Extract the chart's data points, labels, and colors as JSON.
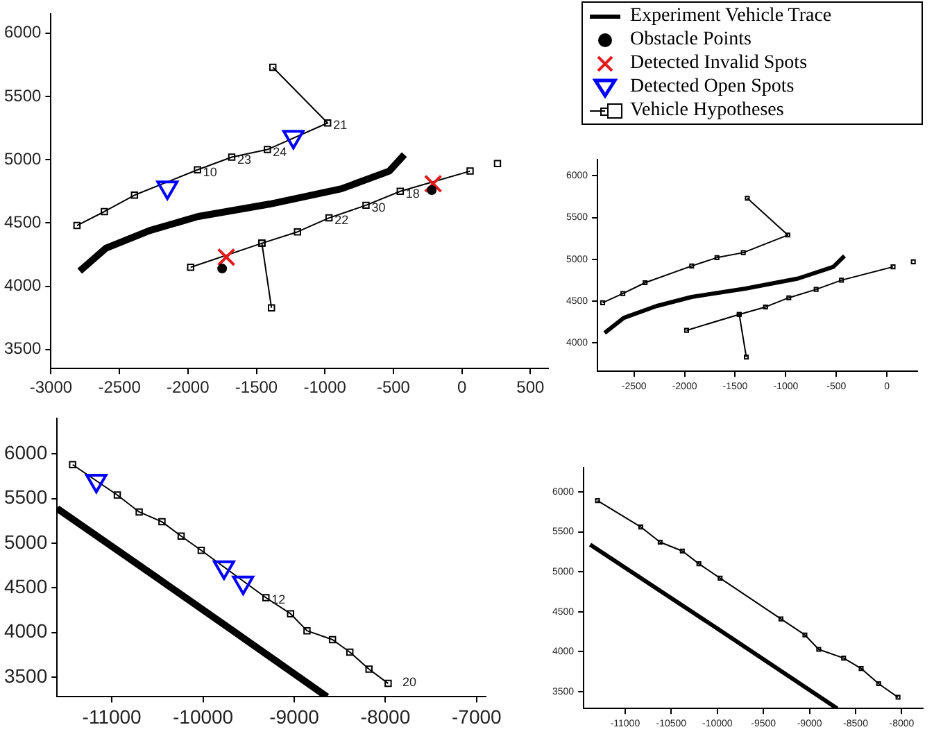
{
  "chart_data": [
    {
      "type": "scatter",
      "legend": "top right",
      "xlim": [
        -3000,
        630
      ],
      "ylim": [
        3350,
        6150
      ],
      "xticks": [
        -3000,
        -2500,
        -2000,
        -1500,
        -1000,
        -500,
        0,
        500
      ],
      "yticks": [
        3500,
        4000,
        4500,
        5000,
        5500,
        6000
      ],
      "grid": false,
      "series": [
        {
          "name": "Experiment Vehicle Trace",
          "type": "line",
          "marker": "none",
          "color": "#000000",
          "x": [
            -2790,
            -2600,
            -2280,
            -1930,
            -1400,
            -880,
            -530,
            -420
          ],
          "values": [
            4120,
            4300,
            4440,
            4550,
            4650,
            4770,
            4910,
            5040
          ]
        },
        {
          "name": "Obstacle Points",
          "type": "scatter",
          "marker": "circle",
          "color": "#000000",
          "x": [
            -1750,
            -220
          ],
          "values": [
            4140,
            4760
          ]
        },
        {
          "name": "Detected Invalid Spots",
          "type": "scatter",
          "marker": "cross",
          "color": "#e41a1c",
          "x": [
            -1720,
            -210
          ],
          "values": [
            4230,
            4810
          ]
        },
        {
          "name": "Detected Open Spots",
          "type": "scatter",
          "marker": "triangle",
          "color": "#0000ff",
          "x": [
            -2150,
            -1230
          ],
          "values": [
            4780,
            5180
          ]
        },
        {
          "name": "Vehicle Hypotheses",
          "type": "line",
          "marker": "square",
          "color": "#000000",
          "x": [
            -2810,
            -2610,
            -2390,
            -1930,
            -1680,
            -1420,
            -980,
            -1380
          ],
          "values": [
            4480,
            4590,
            4720,
            4920,
            5020,
            5080,
            5290,
            5730
          ]
        },
        {
          "type": "line",
          "marker": "square",
          "color": "#000000",
          "x": [
            -1390,
            -1460,
            -1200,
            -970,
            -700,
            -450,
            60
          ],
          "values": [
            3830,
            4340,
            4430,
            4540,
            4640,
            4750,
            4910
          ]
        },
        {
          "type": "line",
          "marker": "square",
          "color": "#000000",
          "x": [
            -1980,
            -1460
          ],
          "values": [
            4150,
            4340
          ]
        },
        {
          "type": "line",
          "marker": "square",
          "color": "#000000",
          "x": [
            260
          ],
          "values": [
            4970
          ]
        }
      ],
      "annotations": [
        {
          "text": "21",
          "x": -980,
          "y": 5290
        },
        {
          "text": "10",
          "x": -1930,
          "y": 4920
        },
        {
          "text": "23",
          "x": -1680,
          "y": 5020
        },
        {
          "text": "24",
          "x": -1420,
          "y": 5080
        },
        {
          "text": "22",
          "x": -970,
          "y": 4540
        },
        {
          "text": "30",
          "x": -700,
          "y": 4640
        },
        {
          "text": "18",
          "x": -450,
          "y": 4750
        }
      ]
    },
    {
      "type": "scatter",
      "xlim": [
        -2860,
        300
      ],
      "ylim": [
        3660,
        6190
      ],
      "xticks": [
        -2500,
        -2000,
        -1500,
        -1000,
        -500,
        0
      ],
      "yticks": [
        4000,
        4500,
        5000,
        5500,
        6000
      ],
      "grid": false,
      "series": [
        {
          "type": "line",
          "marker": "none",
          "color": "#000000",
          "x": [
            -2790,
            -2600,
            -2280,
            -1930,
            -1400,
            -880,
            -530,
            -420
          ],
          "values": [
            4120,
            4300,
            4440,
            4550,
            4650,
            4770,
            4910,
            5040
          ]
        },
        {
          "type": "line",
          "marker": "square",
          "color": "#000000",
          "x": [
            -2810,
            -2610,
            -2390,
            -1930,
            -1680,
            -1420,
            -980,
            -1380
          ],
          "values": [
            4480,
            4590,
            4720,
            4920,
            5020,
            5080,
            5290,
            5730
          ]
        },
        {
          "type": "line",
          "marker": "square",
          "color": "#000000",
          "x": [
            -1390,
            -1460,
            -1200,
            -970,
            -700,
            -450,
            60
          ],
          "values": [
            3830,
            4340,
            4430,
            4540,
            4640,
            4750,
            4910
          ]
        },
        {
          "type": "line",
          "marker": "square",
          "color": "#000000",
          "x": [
            -1980,
            -1460
          ],
          "values": [
            4150,
            4340
          ]
        },
        {
          "type": "line",
          "marker": "square",
          "color": "#000000",
          "x": [
            260
          ],
          "values": [
            4970
          ]
        }
      ]
    },
    {
      "type": "scatter",
      "xlim": [
        -11600,
        -6900
      ],
      "ylim": [
        3280,
        6400
      ],
      "xticks": [
        -11000,
        -10000,
        -9000,
        -8000,
        -7000
      ],
      "yticks": [
        3500,
        4000,
        4500,
        5000,
        5500,
        6000
      ],
      "grid": false,
      "series": [
        {
          "type": "line",
          "marker": "none",
          "color": "#000000",
          "x": [
            -11600,
            -10500,
            -9700,
            -8640
          ],
          "values": [
            5390,
            4610,
            4040,
            3280
          ]
        },
        {
          "type": "scatter",
          "marker": "triangle",
          "color": "#0000ff",
          "x": [
            -11170,
            -9770,
            -9560
          ],
          "values": [
            5700,
            4730,
            4560
          ]
        },
        {
          "type": "line",
          "marker": "square",
          "color": "#000000",
          "x": [
            -11430,
            -10940,
            -10700,
            -10450,
            -10240,
            -10020,
            -9310,
            -9040,
            -8860,
            -8580,
            -8390,
            -8180,
            -7970
          ],
          "values": [
            5880,
            5540,
            5350,
            5240,
            5080,
            4920,
            4390,
            4210,
            4020,
            3920,
            3780,
            3590,
            3430
          ]
        }
      ],
      "annotations": [
        {
          "text": "12",
          "x": -9310,
          "y": 4390
        },
        "20"
      ]
    },
    {
      "type": "scatter",
      "xlim": [
        -11450,
        -7770
      ],
      "ylim": [
        3290,
        6300
      ],
      "xticks": [
        -11000,
        -10500,
        -10000,
        -9500,
        -9000,
        -8500,
        -8000
      ],
      "yticks": [
        3500,
        4000,
        4500,
        5000,
        5500,
        6000
      ],
      "grid": false,
      "series": [
        {
          "type": "line",
          "marker": "none",
          "color": "#000000",
          "x": [
            -11380,
            -10000,
            -8700
          ],
          "values": [
            5340,
            4290,
            3290
          ]
        },
        {
          "type": "line",
          "marker": "square",
          "color": "#000000",
          "x": [
            -11300,
            -10830,
            -10620,
            -10380,
            -10200,
            -9970,
            -9310,
            -9050,
            -8900,
            -8630,
            -8440,
            -8250,
            -8040
          ],
          "values": [
            5890,
            5560,
            5370,
            5260,
            5100,
            4920,
            4410,
            4210,
            4030,
            3920,
            3790,
            3600,
            3430
          ]
        }
      ]
    }
  ]
}
